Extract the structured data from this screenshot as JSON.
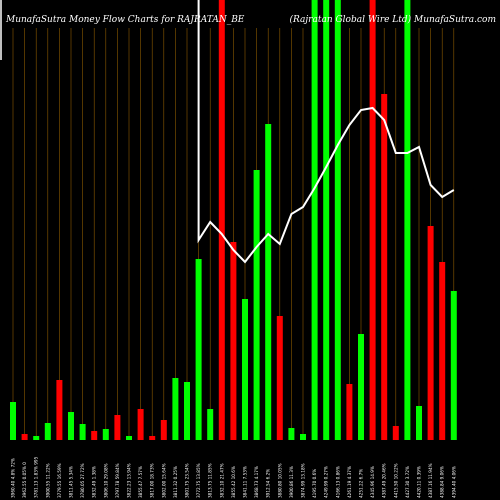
{
  "header": {
    "left_title": "MunafaSutra  Money  Flow  Charts for RAJRATAN_BE",
    "right_title": "(Rajratan Global Wire  Ltd) MunafaSutra.com"
  },
  "colors": {
    "background": "#000000",
    "grid": "#8B5A00",
    "up": "#00FF00",
    "down": "#FF0000",
    "line": "#FFFFFF"
  },
  "chart_data": {
    "type": "bar",
    "title": "MunafaSutra  Money  Flow  Charts for RAJRATAN_BE",
    "subtitle": "(Rajratan Global Wire  Ltd) MunafaSutra.com",
    "grid": true,
    "ylim": [
      0,
      440
    ],
    "categories": [
      "3960.40 4.8% 72%",
      "3962.55 0.05% 0",
      "3781.13 1.83% 995",
      "3900.55 11.22%",
      "3779.55 16.59%",
      "3811.45 5.34%",
      "3780.05 27.72%",
      "3832.49 1.38%",
      "3806.10 29.08%",
      "3797.78 59.84%",
      "3822.23 13.94%",
      "3855.47 7.57%",
      "3817.00 18.73%",
      "3802.00 15.64%",
      "3811.32 0.25%",
      "3801.75 23.54%",
      "3772.75 13.85%",
      "3813.75 11.85%",
      "3832.10 21.47%",
      "3855.42 10.6%",
      "3841.11 7.53%",
      "3868.73 4.17%",
      "3912.54 6.2%",
      "3880.80 10.05%",
      "3900.86 11.3%",
      "3874.99 13.18%",
      "4195.70 0.6%",
      "4249.99 0.27%",
      "4166.13 0.86%",
      "4261.19 4.37%",
      "4251.22 6.7%",
      "4345.96 14.9%",
      "4387.49 20.46%",
      "4415.50 10.22%",
      "4427.30 3.72%",
      "4420.11 0.39%",
      "4387.16 11.94%",
      "4388.84 9.06%",
      "4394.40 4.06%"
    ],
    "series": [
      {
        "values": [
          38,
          6,
          4,
          17,
          60,
          28,
          16,
          9,
          11,
          25,
          4,
          31,
          4,
          20,
          62,
          58,
          181,
          31,
          440,
          198,
          141,
          270,
          316,
          124,
          12,
          6,
          440,
          440,
          440,
          56,
          106,
          440,
          346,
          14,
          440,
          34,
          214,
          178,
          149
        ],
        "directions": [
          "up",
          "down",
          "up",
          "up",
          "down",
          "up",
          "up",
          "down",
          "up",
          "down",
          "up",
          "down",
          "down",
          "down",
          "up",
          "up",
          "up",
          "up",
          "down",
          "down",
          "up",
          "up",
          "up",
          "down",
          "up",
          "up",
          "up",
          "up",
          "up",
          "down",
          "up",
          "down",
          "down",
          "down",
          "up",
          "up",
          "down",
          "down",
          "up"
        ]
      },
      {
        "values": [
          null,
          null,
          null,
          null,
          null,
          null,
          null,
          null,
          null,
          null,
          null,
          null,
          null,
          null,
          null,
          null,
          200,
          218,
          206,
          190,
          178,
          193,
          206,
          196,
          226,
          233,
          252,
          273,
          295,
          315,
          330,
          332,
          320,
          287,
          287,
          293,
          255,
          243,
          250
        ]
      }
    ]
  }
}
